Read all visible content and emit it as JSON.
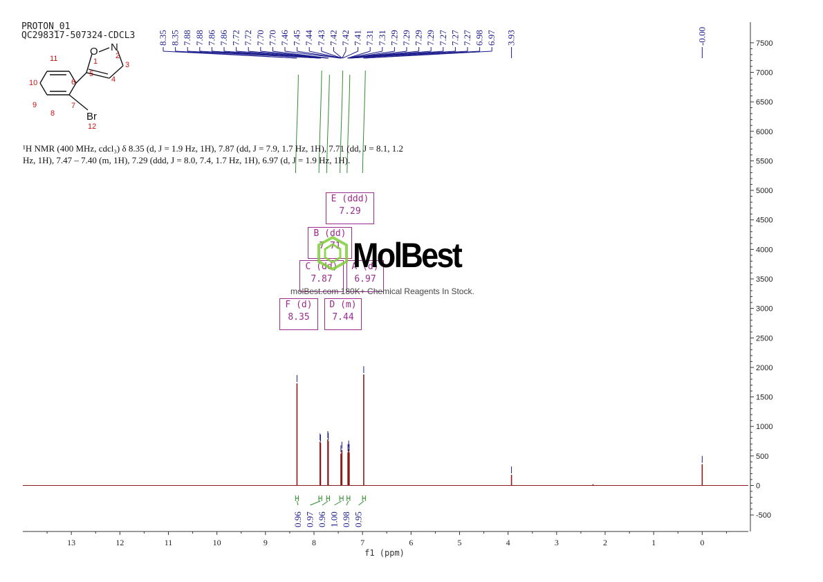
{
  "header": {
    "line1": "PROTON_01",
    "line2": "QC298317-507324-CDCL3"
  },
  "nmr_text": "¹H NMR (400 MHz, cdcl₃) δ 8.35 (d, J = 1.9 Hz, 1H), 7.87 (dd, J = 7.9, 1.7 Hz, 1H), 7.71 (dd, J = 8.1, 1.2 Hz, 1H), 7.47 – 7.40 (m, 1H), 7.29 (ddd, J = 8.0, 7.4, 1.7 Hz, 1H), 6.97 (d, J = 1.9 Hz, 1H).",
  "structure": {
    "atoms": [
      "O",
      "N",
      "Br"
    ],
    "numbers": [
      "1",
      "2",
      "3",
      "4",
      "5",
      "6",
      "7",
      "8",
      "9",
      "10",
      "11",
      "12"
    ]
  },
  "watermark": {
    "name": "MolBest",
    "subtitle": "molBest.com 180K+ Chemical Reagents In Stock."
  },
  "multiplet_boxes": [
    {
      "label": "E (ddd)",
      "value": "7.29"
    },
    {
      "label": "B (dd)",
      "value": "7.71"
    },
    {
      "label": "C (dd)",
      "value": "7.87"
    },
    {
      "label": "A (d)",
      "value": "6.97"
    },
    {
      "label": "F (d)",
      "value": "8.35"
    },
    {
      "label": "D (m)",
      "value": "7.44"
    }
  ],
  "chart_data": {
    "type": "line",
    "xlabel": "f1 (ppm)",
    "x_reversed": true,
    "xlim": [
      14.0,
      -0.95
    ],
    "ylim": [
      -780,
      7850
    ],
    "x_ticks": [
      13,
      12,
      11,
      10,
      9,
      8,
      7,
      6,
      5,
      4,
      3,
      2,
      1,
      0
    ],
    "y_ticks": [
      -500,
      0,
      500,
      1000,
      1500,
      2000,
      2500,
      3000,
      3500,
      4000,
      4500,
      5000,
      5500,
      6000,
      6500,
      7000,
      7500
    ],
    "peak_labels": [
      "8.35",
      "8.35",
      "7.88",
      "7.88",
      "7.86",
      "7.86",
      "7.72",
      "7.72",
      "7.70",
      "7.70",
      "7.46",
      "7.45",
      "7.44",
      "7.43",
      "7.42",
      "7.42",
      "7.41",
      "7.31",
      "7.31",
      "7.29",
      "7.29",
      "7.29",
      "7.29",
      "7.27",
      "7.27",
      "7.27",
      "6.98",
      "6.97",
      "3.93",
      "-0.00"
    ],
    "peaks": [
      {
        "ppm": 8.35,
        "height": 1730
      },
      {
        "ppm": 7.875,
        "height": 740
      },
      {
        "ppm": 7.865,
        "height": 720
      },
      {
        "ppm": 7.715,
        "height": 780
      },
      {
        "ppm": 7.705,
        "height": 750
      },
      {
        "ppm": 7.445,
        "height": 540
      },
      {
        "ppm": 7.425,
        "height": 600
      },
      {
        "ppm": 7.3,
        "height": 560
      },
      {
        "ppm": 7.285,
        "height": 620
      },
      {
        "ppm": 7.275,
        "height": 560
      },
      {
        "ppm": 6.975,
        "height": 1880
      },
      {
        "ppm": 3.93,
        "height": 180
      },
      {
        "ppm": 2.25,
        "height": 20
      },
      {
        "ppm": 0.0,
        "height": 360
      }
    ],
    "integrals": [
      {
        "label": "0.96",
        "from": 8.38,
        "to": 8.32
      },
      {
        "label": "0.97",
        "from": 7.9,
        "to": 7.84
      },
      {
        "label": "0.96",
        "from": 7.74,
        "to": 7.68
      },
      {
        "label": "1.00",
        "from": 7.47,
        "to": 7.4
      },
      {
        "label": "0.98",
        "from": 7.32,
        "to": 7.26
      },
      {
        "label": "0.95",
        "from": 7.0,
        "to": 6.94
      }
    ],
    "colors": {
      "spectrum": "#8b1a1a",
      "peak_label": "#1a1a8b",
      "integral": "#2e8b2e",
      "axis": "#333333"
    }
  }
}
